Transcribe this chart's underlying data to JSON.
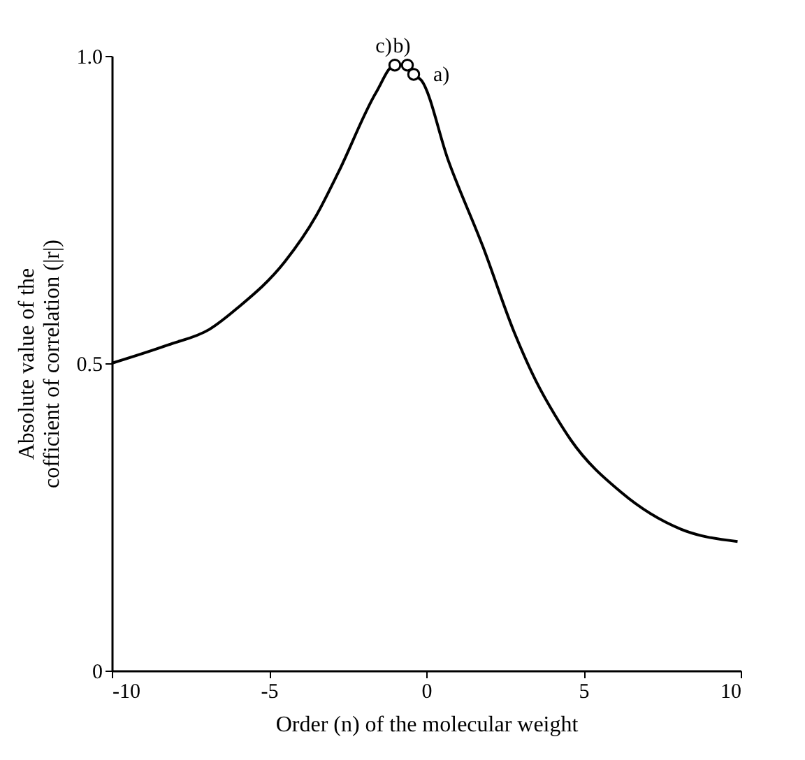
{
  "chart_data": {
    "type": "line",
    "xlabel": "Order (n) of the molecular weight",
    "ylabel": "Absolute value of the\ncofficient of correlation (|r|)",
    "series": [
      {
        "type": "line",
        "color": "#000000",
        "marker": "none",
        "x": [
          -10,
          -8.2,
          -6.9,
          -6,
          -4.5,
          -3.5,
          -2.8,
          -1.6,
          -1.0,
          -0.6,
          -0.4,
          -0.15,
          0.7,
          1.8,
          2.8,
          3.5,
          4.1,
          4.6,
          6.2,
          8.1,
          9.9
        ],
        "values": [
          0.5,
          0.53,
          0.555,
          0.59,
          0.665,
          0.74,
          0.81,
          0.94,
          0.985,
          0.985,
          0.97,
          0.96,
          0.83,
          0.69,
          0.55,
          0.47,
          0.415,
          0.375,
          0.29,
          0.23,
          0.21
        ]
      },
      {
        "type": "scatter",
        "color": "#000000",
        "marker": "circle",
        "x": [
          -1.0,
          -0.6,
          -0.4
        ],
        "values": [
          0.985,
          0.985,
          0.97
        ]
      }
    ],
    "annotations": [
      {
        "text": "a)",
        "x": -0.4,
        "y": 0.97
      },
      {
        "text": "b)",
        "x": -0.6,
        "y": 0.985
      },
      {
        "text": "c)",
        "x": -1.0,
        "y": 0.985
      }
    ],
    "xlim": [
      -10,
      10
    ],
    "xticks": [
      -10,
      -5,
      0,
      5,
      10
    ],
    "ylim": [
      0,
      1.0
    ],
    "yticks": [
      0,
      0.5,
      {
        "value": 1.0,
        "label": "1.0"
      }
    ],
    "grid": false
  }
}
